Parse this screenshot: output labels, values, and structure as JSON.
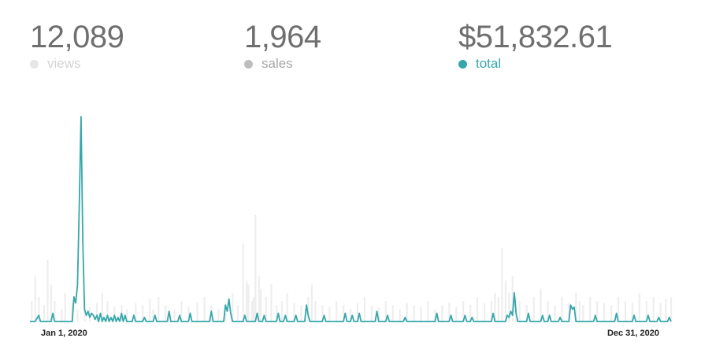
{
  "stats": [
    {
      "value": "12,089",
      "label": "views",
      "dot_color": "#e6e6e6",
      "label_color": "#d4d4d4"
    },
    {
      "value": "1,964",
      "label": "sales",
      "dot_color": "#bdbdbd",
      "label_color": "#a6a6a6"
    },
    {
      "value": "$51,832.61",
      "label": "total",
      "dot_color": "#36a7ab",
      "label_color": "#36a7ab"
    }
  ],
  "chart_data": {
    "type": "line",
    "title": "",
    "xlabel": "",
    "ylabel": "",
    "grid": false,
    "x_range": [
      "Jan 1, 2020",
      "Dec 31, 2020"
    ],
    "x_tick_labels": [
      "Jan 1, 2020",
      "Dec 31, 2020"
    ],
    "ylim": [
      0,
      100
    ],
    "series": [
      {
        "role": "views",
        "style": "bars",
        "color": "#eeeeee",
        "points": [
          [
            1,
            10
          ],
          [
            3,
            22
          ],
          [
            5,
            12
          ],
          [
            8,
            8
          ],
          [
            10,
            30
          ],
          [
            12,
            18
          ],
          [
            14,
            10
          ],
          [
            18,
            6
          ],
          [
            20,
            14
          ],
          [
            24,
            9
          ],
          [
            27,
            6
          ],
          [
            31,
            12
          ],
          [
            34,
            7
          ],
          [
            38,
            9
          ],
          [
            41,
            14
          ],
          [
            44,
            10
          ],
          [
            48,
            7
          ],
          [
            52,
            8
          ],
          [
            55,
            6
          ],
          [
            60,
            9
          ],
          [
            64,
            8
          ],
          [
            68,
            11
          ],
          [
            70,
            6
          ],
          [
            73,
            12
          ],
          [
            77,
            8
          ],
          [
            82,
            6
          ],
          [
            86,
            10
          ],
          [
            90,
            7
          ],
          [
            95,
            9
          ],
          [
            99,
            12
          ],
          [
            103,
            8
          ],
          [
            107,
            6
          ],
          [
            111,
            9
          ],
          [
            115,
            14
          ],
          [
            118,
            8
          ],
          [
            121,
            38
          ],
          [
            123,
            20
          ],
          [
            124,
            18
          ],
          [
            126,
            10
          ],
          [
            127,
            12
          ],
          [
            128,
            52
          ],
          [
            130,
            22
          ],
          [
            131,
            16
          ],
          [
            134,
            12
          ],
          [
            137,
            18
          ],
          [
            140,
            8
          ],
          [
            143,
            10
          ],
          [
            146,
            14
          ],
          [
            150,
            9
          ],
          [
            154,
            8
          ],
          [
            158,
            12
          ],
          [
            160,
            18
          ],
          [
            162,
            10
          ],
          [
            166,
            8
          ],
          [
            170,
            7
          ],
          [
            174,
            10
          ],
          [
            178,
            8
          ],
          [
            182,
            6
          ],
          [
            186,
            9
          ],
          [
            190,
            12
          ],
          [
            194,
            8
          ],
          [
            198,
            7
          ],
          [
            202,
            10
          ],
          [
            206,
            8
          ],
          [
            210,
            6
          ],
          [
            214,
            9
          ],
          [
            218,
            8
          ],
          [
            222,
            7
          ],
          [
            226,
            10
          ],
          [
            230,
            6
          ],
          [
            234,
            8
          ],
          [
            238,
            9
          ],
          [
            242,
            7
          ],
          [
            246,
            10
          ],
          [
            250,
            8
          ],
          [
            254,
            12
          ],
          [
            258,
            9
          ],
          [
            262,
            10
          ],
          [
            264,
            14
          ],
          [
            266,
            12
          ],
          [
            268,
            36
          ],
          [
            270,
            20
          ],
          [
            272,
            14
          ],
          [
            274,
            22
          ],
          [
            276,
            12
          ],
          [
            278,
            10
          ],
          [
            282,
            8
          ],
          [
            286,
            12
          ],
          [
            290,
            16
          ],
          [
            294,
            10
          ],
          [
            298,
            8
          ],
          [
            302,
            12
          ],
          [
            306,
            9
          ],
          [
            310,
            14
          ],
          [
            312,
            10
          ],
          [
            314,
            8
          ],
          [
            318,
            12
          ],
          [
            322,
            10
          ],
          [
            326,
            9
          ],
          [
            330,
            8
          ],
          [
            334,
            12
          ],
          [
            338,
            10
          ],
          [
            342,
            9
          ],
          [
            346,
            14
          ],
          [
            350,
            10
          ],
          [
            354,
            12
          ],
          [
            358,
            9
          ],
          [
            361,
            11
          ],
          [
            364,
            12
          ]
        ]
      },
      {
        "role": "total",
        "style": "line",
        "color": "#36a7ab",
        "points": [
          [
            0,
            0
          ],
          [
            3,
            0
          ],
          [
            5,
            3
          ],
          [
            6,
            0
          ],
          [
            12,
            0
          ],
          [
            13,
            4
          ],
          [
            14,
            0
          ],
          [
            24,
            0
          ],
          [
            25,
            12
          ],
          [
            26,
            9
          ],
          [
            27,
            18
          ],
          [
            28,
            56
          ],
          [
            29,
            100
          ],
          [
            30,
            40
          ],
          [
            31,
            6
          ],
          [
            32,
            3
          ],
          [
            33,
            5
          ],
          [
            34,
            2
          ],
          [
            35,
            4
          ],
          [
            36,
            3
          ],
          [
            37,
            1
          ],
          [
            38,
            3
          ],
          [
            39,
            0
          ],
          [
            40,
            4
          ],
          [
            41,
            0
          ],
          [
            42,
            2
          ],
          [
            43,
            0
          ],
          [
            44,
            3
          ],
          [
            45,
            0
          ],
          [
            46,
            2
          ],
          [
            47,
            0
          ],
          [
            48,
            3
          ],
          [
            49,
            0
          ],
          [
            50,
            2
          ],
          [
            51,
            0
          ],
          [
            52,
            4
          ],
          [
            53,
            0
          ],
          [
            54,
            3
          ],
          [
            55,
            0
          ],
          [
            58,
            0
          ],
          [
            59,
            3
          ],
          [
            60,
            0
          ],
          [
            64,
            0
          ],
          [
            65,
            2
          ],
          [
            66,
            0
          ],
          [
            70,
            0
          ],
          [
            71,
            3
          ],
          [
            72,
            0
          ],
          [
            78,
            0
          ],
          [
            79,
            5
          ],
          [
            80,
            0
          ],
          [
            84,
            0
          ],
          [
            85,
            3
          ],
          [
            86,
            0
          ],
          [
            90,
            0
          ],
          [
            91,
            4
          ],
          [
            92,
            0
          ],
          [
            102,
            0
          ],
          [
            103,
            5
          ],
          [
            104,
            0
          ],
          [
            110,
            0
          ],
          [
            111,
            8
          ],
          [
            112,
            5
          ],
          [
            113,
            11
          ],
          [
            114,
            4
          ],
          [
            115,
            0
          ],
          [
            121,
            0
          ],
          [
            122,
            3
          ],
          [
            123,
            0
          ],
          [
            128,
            0
          ],
          [
            129,
            4
          ],
          [
            130,
            0
          ],
          [
            132,
            0
          ],
          [
            133,
            3
          ],
          [
            134,
            0
          ],
          [
            140,
            0
          ],
          [
            141,
            4
          ],
          [
            142,
            0
          ],
          [
            144,
            0
          ],
          [
            145,
            3
          ],
          [
            146,
            0
          ],
          [
            150,
            0
          ],
          [
            151,
            3
          ],
          [
            152,
            0
          ],
          [
            156,
            0
          ],
          [
            157,
            8
          ],
          [
            158,
            3
          ],
          [
            159,
            0
          ],
          [
            166,
            0
          ],
          [
            167,
            3
          ],
          [
            168,
            0
          ],
          [
            178,
            0
          ],
          [
            179,
            4
          ],
          [
            180,
            0
          ],
          [
            182,
            0
          ],
          [
            183,
            3
          ],
          [
            184,
            0
          ],
          [
            186,
            0
          ],
          [
            187,
            4
          ],
          [
            188,
            0
          ],
          [
            196,
            0
          ],
          [
            197,
            5
          ],
          [
            198,
            0
          ],
          [
            202,
            0
          ],
          [
            203,
            3
          ],
          [
            204,
            0
          ],
          [
            212,
            0
          ],
          [
            213,
            2
          ],
          [
            214,
            0
          ],
          [
            230,
            0
          ],
          [
            231,
            4
          ],
          [
            232,
            0
          ],
          [
            238,
            0
          ],
          [
            239,
            3
          ],
          [
            240,
            0
          ],
          [
            246,
            0
          ],
          [
            247,
            3
          ],
          [
            248,
            0
          ],
          [
            250,
            0
          ],
          [
            251,
            2
          ],
          [
            252,
            0
          ],
          [
            262,
            0
          ],
          [
            263,
            4
          ],
          [
            264,
            0
          ],
          [
            270,
            0
          ],
          [
            271,
            3
          ],
          [
            272,
            2
          ],
          [
            273,
            5
          ],
          [
            274,
            3
          ],
          [
            275,
            14
          ],
          [
            276,
            4
          ],
          [
            277,
            0
          ],
          [
            282,
            0
          ],
          [
            283,
            4
          ],
          [
            284,
            0
          ],
          [
            290,
            0
          ],
          [
            291,
            3
          ],
          [
            292,
            0
          ],
          [
            294,
            0
          ],
          [
            295,
            3
          ],
          [
            296,
            0
          ],
          [
            300,
            0
          ],
          [
            301,
            2
          ],
          [
            302,
            0
          ],
          [
            306,
            0
          ],
          [
            307,
            8
          ],
          [
            308,
            6
          ],
          [
            309,
            7
          ],
          [
            310,
            0
          ],
          [
            320,
            0
          ],
          [
            321,
            3
          ],
          [
            322,
            0
          ],
          [
            332,
            0
          ],
          [
            333,
            4
          ],
          [
            334,
            0
          ],
          [
            342,
            0
          ],
          [
            343,
            3
          ],
          [
            344,
            0
          ],
          [
            350,
            0
          ],
          [
            351,
            3
          ],
          [
            352,
            0
          ],
          [
            356,
            0
          ],
          [
            357,
            2
          ],
          [
            358,
            0
          ],
          [
            362,
            0
          ],
          [
            363,
            2
          ],
          [
            364,
            0
          ]
        ]
      }
    ]
  }
}
